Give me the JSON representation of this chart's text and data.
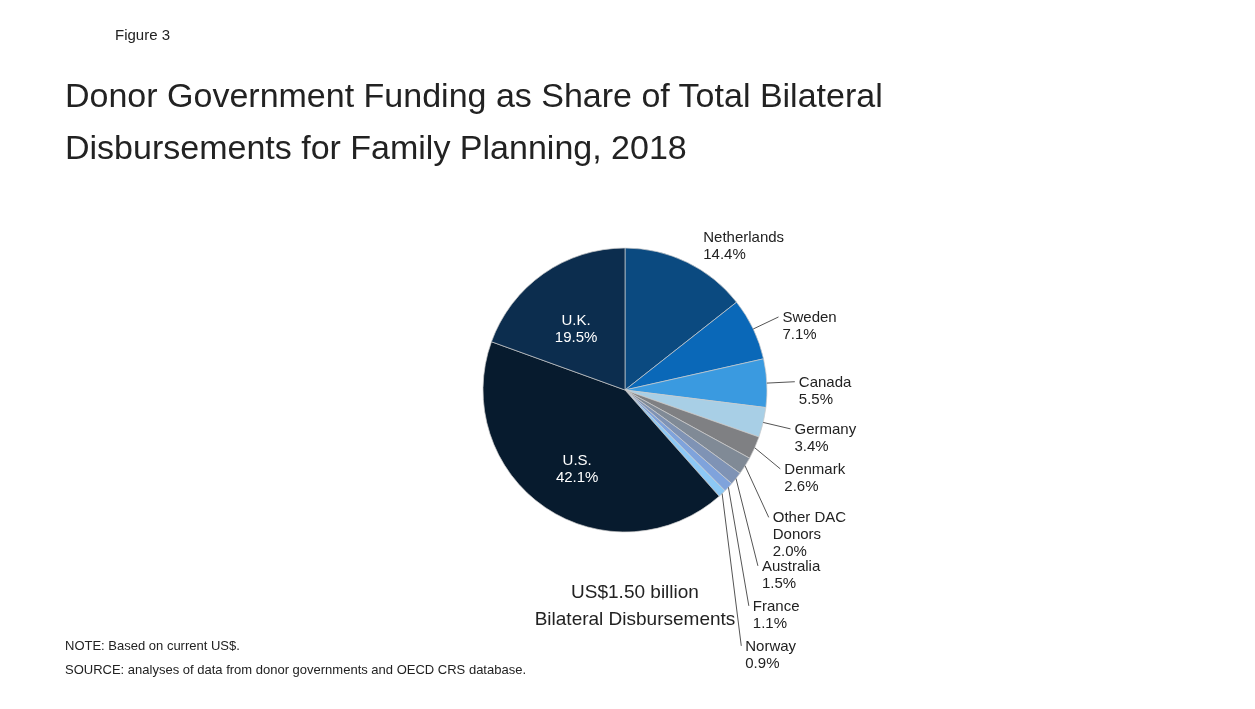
{
  "chart_data": {
    "type": "pie",
    "title": "Donor Government Funding as Share of Total Bilateral\nDisbursements for Family Planning, 2018",
    "categories": [
      "Netherlands",
      "Sweden",
      "Canada",
      "Germany",
      "Denmark",
      "Other DAC Donors",
      "Australia",
      "France",
      "Norway",
      "U.S.",
      "U.K."
    ],
    "values": [
      14.4,
      7.1,
      5.5,
      3.4,
      2.6,
      2.0,
      1.5,
      1.1,
      0.9,
      42.1,
      19.5
    ],
    "value_labels": [
      "14.4%",
      "7.1%",
      "5.5%",
      "3.4%",
      "2.6%",
      "2.0%",
      "1.5%",
      "1.1%",
      "0.9%",
      "42.1%",
      "19.5%"
    ],
    "colors": [
      "#0b4a80",
      "#0a68b8",
      "#3a9ae0",
      "#a8cfe6",
      "#7f8083",
      "#808a96",
      "#7f93b5",
      "#7fa3dc",
      "#8cc8f5",
      "#071b2e",
      "#0c2d4e"
    ],
    "annotations": [
      "Figure 3",
      "US$1.50 billion\nBilateral Disbursements",
      "NOTE: Based on current US$.",
      "SOURCE: analyses of data from donor governments and OECD CRS database."
    ]
  }
}
